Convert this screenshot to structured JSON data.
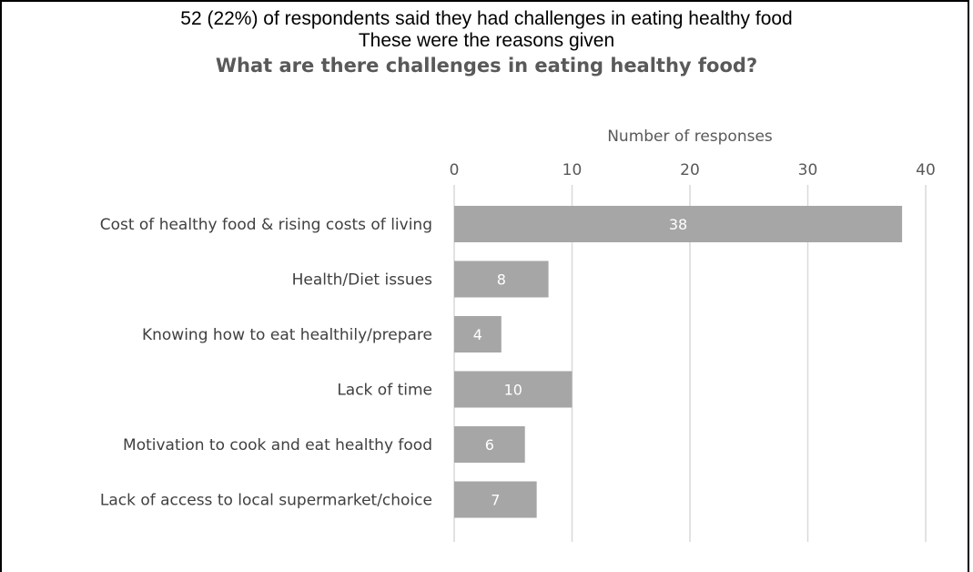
{
  "intro": {
    "line1": "52 (22%) of respondents said they had challenges in eating healthy food",
    "line2": "These were the reasons given"
  },
  "chart_data": {
    "type": "bar",
    "orientation": "horizontal",
    "title": "What are there challenges in eating healthy food?",
    "xlabel": "Number of responses",
    "xlim": [
      0,
      40
    ],
    "xticks": [
      0,
      10,
      20,
      30,
      40
    ],
    "grid": true,
    "axis_position": "top",
    "categories": [
      "Cost of healthy food & rising costs of living",
      "Health/Diet issues",
      "Knowing how to eat healthily/prepare",
      "Lack of time",
      "Motivation to cook and eat healthy food",
      "Lack of access to local supermarket/choice"
    ],
    "values": [
      38,
      8,
      4,
      10,
      6,
      7
    ],
    "bar_color": "#a6a6a6",
    "grid_color": "#d9d9d9"
  }
}
